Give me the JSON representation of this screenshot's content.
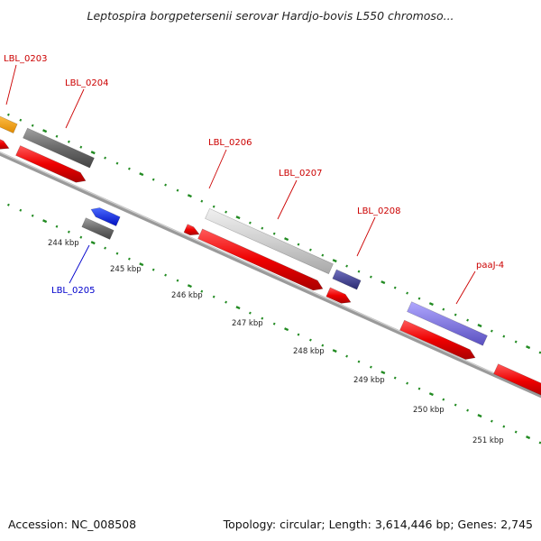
{
  "title": "Leptospira borgpetersenii serovar Hardjo-bovis L550 chromoso...",
  "footer": {
    "accession": "Accession: NC_008508",
    "summary": "Topology: circular; Length: 3,614,446 bp; Genes: 2,745"
  },
  "colors": {
    "backbone": "#8a8a8a",
    "tick": "#228b22",
    "label_red": "#cc0000",
    "label_blue": "#0000cc"
  },
  "scale_ticks": [
    "244 kbp",
    "245 kbp",
    "246 kbp",
    "247 kbp",
    "248 kbp",
    "249 kbp",
    "250 kbp",
    "251 kbp"
  ],
  "gene_labels": [
    {
      "name": "label-lbl-0203",
      "text": "LBL_0203",
      "color": "#cc0000"
    },
    {
      "name": "label-lbl-0204",
      "text": "LBL_0204",
      "color": "#cc0000"
    },
    {
      "name": "label-lbl-0205",
      "text": "LBL_0205",
      "color": "#0000cc"
    },
    {
      "name": "label-lbl-0206",
      "text": "LBL_0206",
      "color": "#cc0000"
    },
    {
      "name": "label-lbl-0207",
      "text": "LBL_0207",
      "color": "#cc0000"
    },
    {
      "name": "label-lbl-0208",
      "text": "LBL_0208",
      "color": "#cc0000"
    },
    {
      "name": "label-paaj-4",
      "text": "paaJ-4",
      "color": "#cc0000"
    }
  ]
}
